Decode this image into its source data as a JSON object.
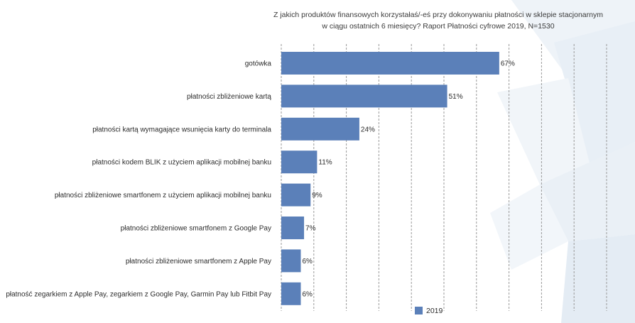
{
  "chart_data": {
    "type": "bar",
    "orientation": "horizontal",
    "title": "Z jakich produktów finansowych korzystałaś/-eś przy dokonywaniu płatności w sklepie stacjonarnym w ciągu ostatnich 6 miesięcy? Raport Płatności cyfrowe 2019, N=1530",
    "title_lines": [
      "Z jakich produktów finansowych korzystałaś/-eś przy dokonywaniu płatności w sklepie stacjonarnym",
      "w ciągu ostatnich 6 miesięcy? Raport Płatności cyfrowe 2019, N=1530"
    ],
    "categories": [
      "gotówka",
      "płatności zbliżeniowe kartą",
      "płatności kartą wymagające wsunięcia karty do terminala",
      "płatności kodem BLIK z użyciem aplikacji mobilnej banku",
      "płatności zbliżeniowe smartfonem z użyciem aplikacji mobilnej banku",
      "płatności zbliżeniowe smartfonem z Google Pay",
      "płatności zbliżeniowe smartfonem z Apple Pay",
      "płatność zegarkiem z Apple Pay, zegarkiem z Google Pay, Garmin Pay lub Fitbit Pay"
    ],
    "series": [
      {
        "name": "2019",
        "values": [
          67,
          51,
          24,
          11,
          9,
          7,
          6,
          6
        ],
        "labels": [
          "67%",
          "51%",
          "24%",
          "11%",
          "9%",
          "7%",
          "6%",
          "6%"
        ]
      }
    ],
    "xlim": [
      0,
      100
    ],
    "grid": true,
    "grid_style": "dashed vertical",
    "legend_position": "bottom",
    "bar_color": "#5b80b9"
  }
}
